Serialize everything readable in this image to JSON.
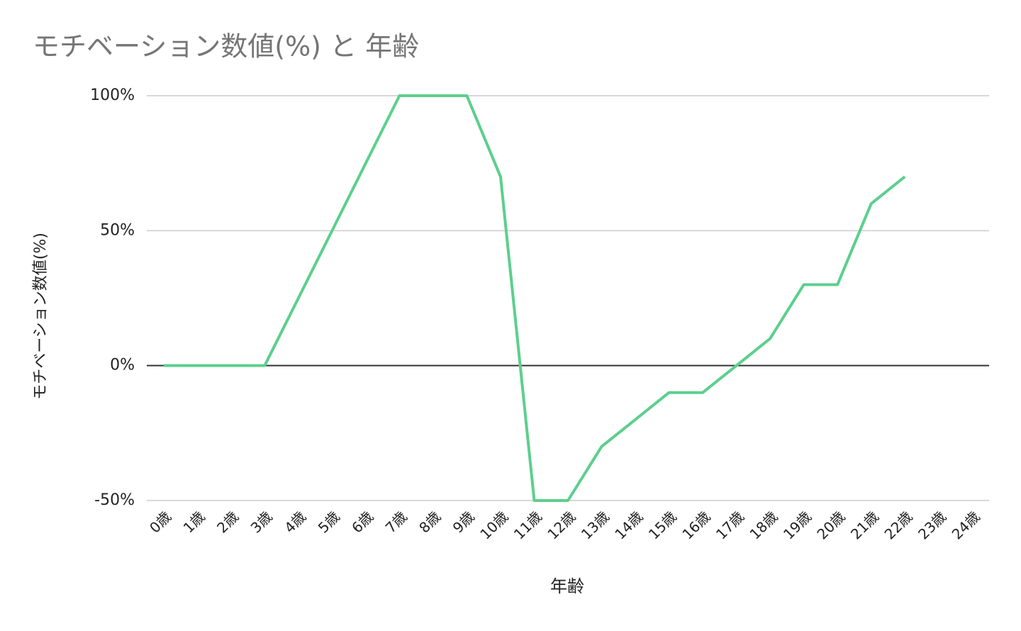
{
  "chart_data": {
    "type": "line",
    "title": "モチベーション数値(%) と 年齢",
    "x_label": "年齢",
    "y_label": "モチベーション数値(%)",
    "categories": [
      "0歳",
      "1歳",
      "2歳",
      "3歳",
      "4歳",
      "5歳",
      "6歳",
      "7歳",
      "8歳",
      "9歳",
      "10歳",
      "11歳",
      "12歳",
      "13歳",
      "14歳",
      "15歳",
      "16歳",
      "17歳",
      "18歳",
      "19歳",
      "20歳",
      "21歳",
      "22歳",
      "23歳",
      "24歳"
    ],
    "series": [
      {
        "name": "モチベーション数値(%)",
        "color": "#5ccf8d",
        "values": [
          0,
          0,
          0,
          0,
          25,
          50,
          75,
          100,
          100,
          100,
          70,
          -50,
          -50,
          -30,
          -20,
          -10,
          -10,
          0,
          10,
          30,
          30,
          60,
          70,
          null,
          null
        ]
      }
    ],
    "ylim": [
      -50,
      100
    ],
    "yticks": [
      {
        "value": -50,
        "label": "-50%"
      },
      {
        "value": 0,
        "label": "0%"
      },
      {
        "value": 50,
        "label": "50%"
      },
      {
        "value": 100,
        "label": "100%"
      }
    ],
    "grid": true
  }
}
